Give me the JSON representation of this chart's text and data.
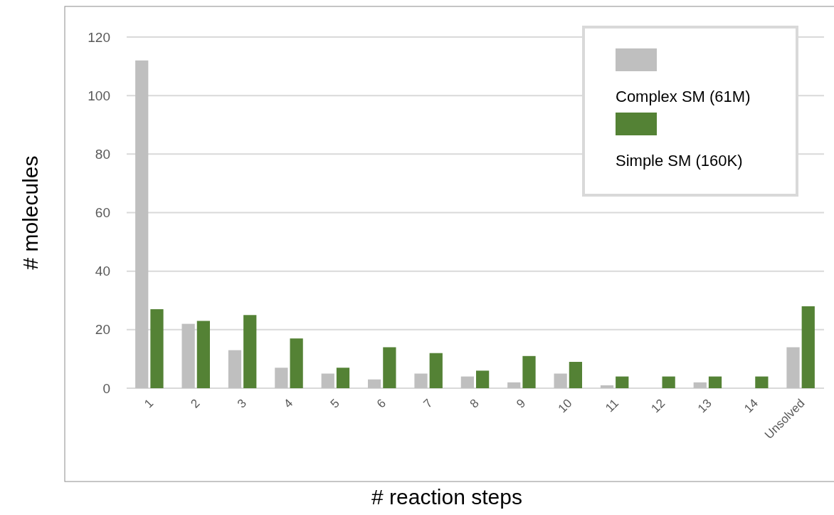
{
  "chart_data": {
    "type": "bar",
    "xlabel": "# reaction steps",
    "ylabel": "# molecules",
    "categories": [
      "1",
      "2",
      "3",
      "4",
      "5",
      "6",
      "7",
      "8",
      "9",
      "10",
      "11",
      "12",
      "13",
      "14",
      "Unsolved"
    ],
    "series": [
      {
        "name": "Complex SM (61M)",
        "color": "#bfbfbf",
        "values": [
          112,
          22,
          13,
          7,
          5,
          3,
          5,
          4,
          2,
          5,
          1,
          0,
          2,
          0,
          14
        ]
      },
      {
        "name": "Simple SM (160K)",
        "color": "#548235",
        "values": [
          27,
          23,
          25,
          17,
          7,
          14,
          12,
          6,
          11,
          9,
          4,
          4,
          4,
          4,
          28
        ]
      }
    ],
    "ylim": [
      0,
      120
    ],
    "yticks": [
      0,
      20,
      40,
      60,
      80,
      100,
      120
    ],
    "grid": "y",
    "legend": "top right"
  }
}
